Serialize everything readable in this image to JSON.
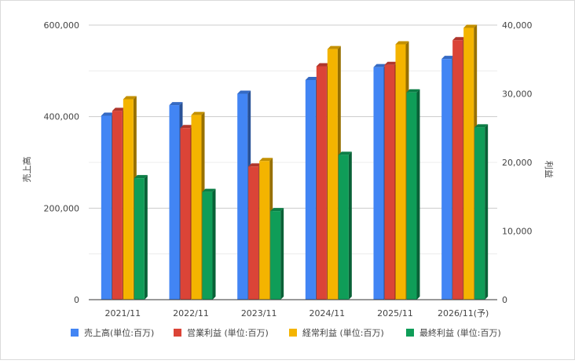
{
  "chart_data": {
    "type": "bar",
    "categories": [
      "2021/11",
      "2022/11",
      "2023/11",
      "2024/11",
      "2025/11",
      "2026/11(予)"
    ],
    "series": [
      {
        "name": "売上高(単位:百万)",
        "axis": "left",
        "color": "#4285f4",
        "values": [
          402000,
          425000,
          450000,
          480000,
          508000,
          526000
        ]
      },
      {
        "name": "営業利益 (単位:百万)",
        "axis": "right",
        "color": "#db4437",
        "values": [
          27500,
          25000,
          19400,
          34000,
          34200,
          37800
        ]
      },
      {
        "name": "経常利益 (単位:百万)",
        "axis": "right",
        "color": "#f4b400",
        "values": [
          29200,
          26900,
          20200,
          36500,
          37200,
          39600
        ]
      },
      {
        "name": "最終利益 (単位:百万)",
        "axis": "right",
        "color": "#0f9d58",
        "values": [
          17700,
          15700,
          12900,
          21100,
          30200,
          25100
        ]
      }
    ],
    "ylabel_left": "売上高",
    "ylabel_right": "利益",
    "ylim_left": [
      0,
      600000
    ],
    "ylim_right": [
      0,
      40000
    ],
    "yticks_left": [
      "0",
      "200,000",
      "400,000",
      "600,000"
    ],
    "yticks_right": [
      "0",
      "10,000",
      "20,000",
      "30,000",
      "40,000"
    ],
    "grid": true,
    "legend": "bottom"
  }
}
